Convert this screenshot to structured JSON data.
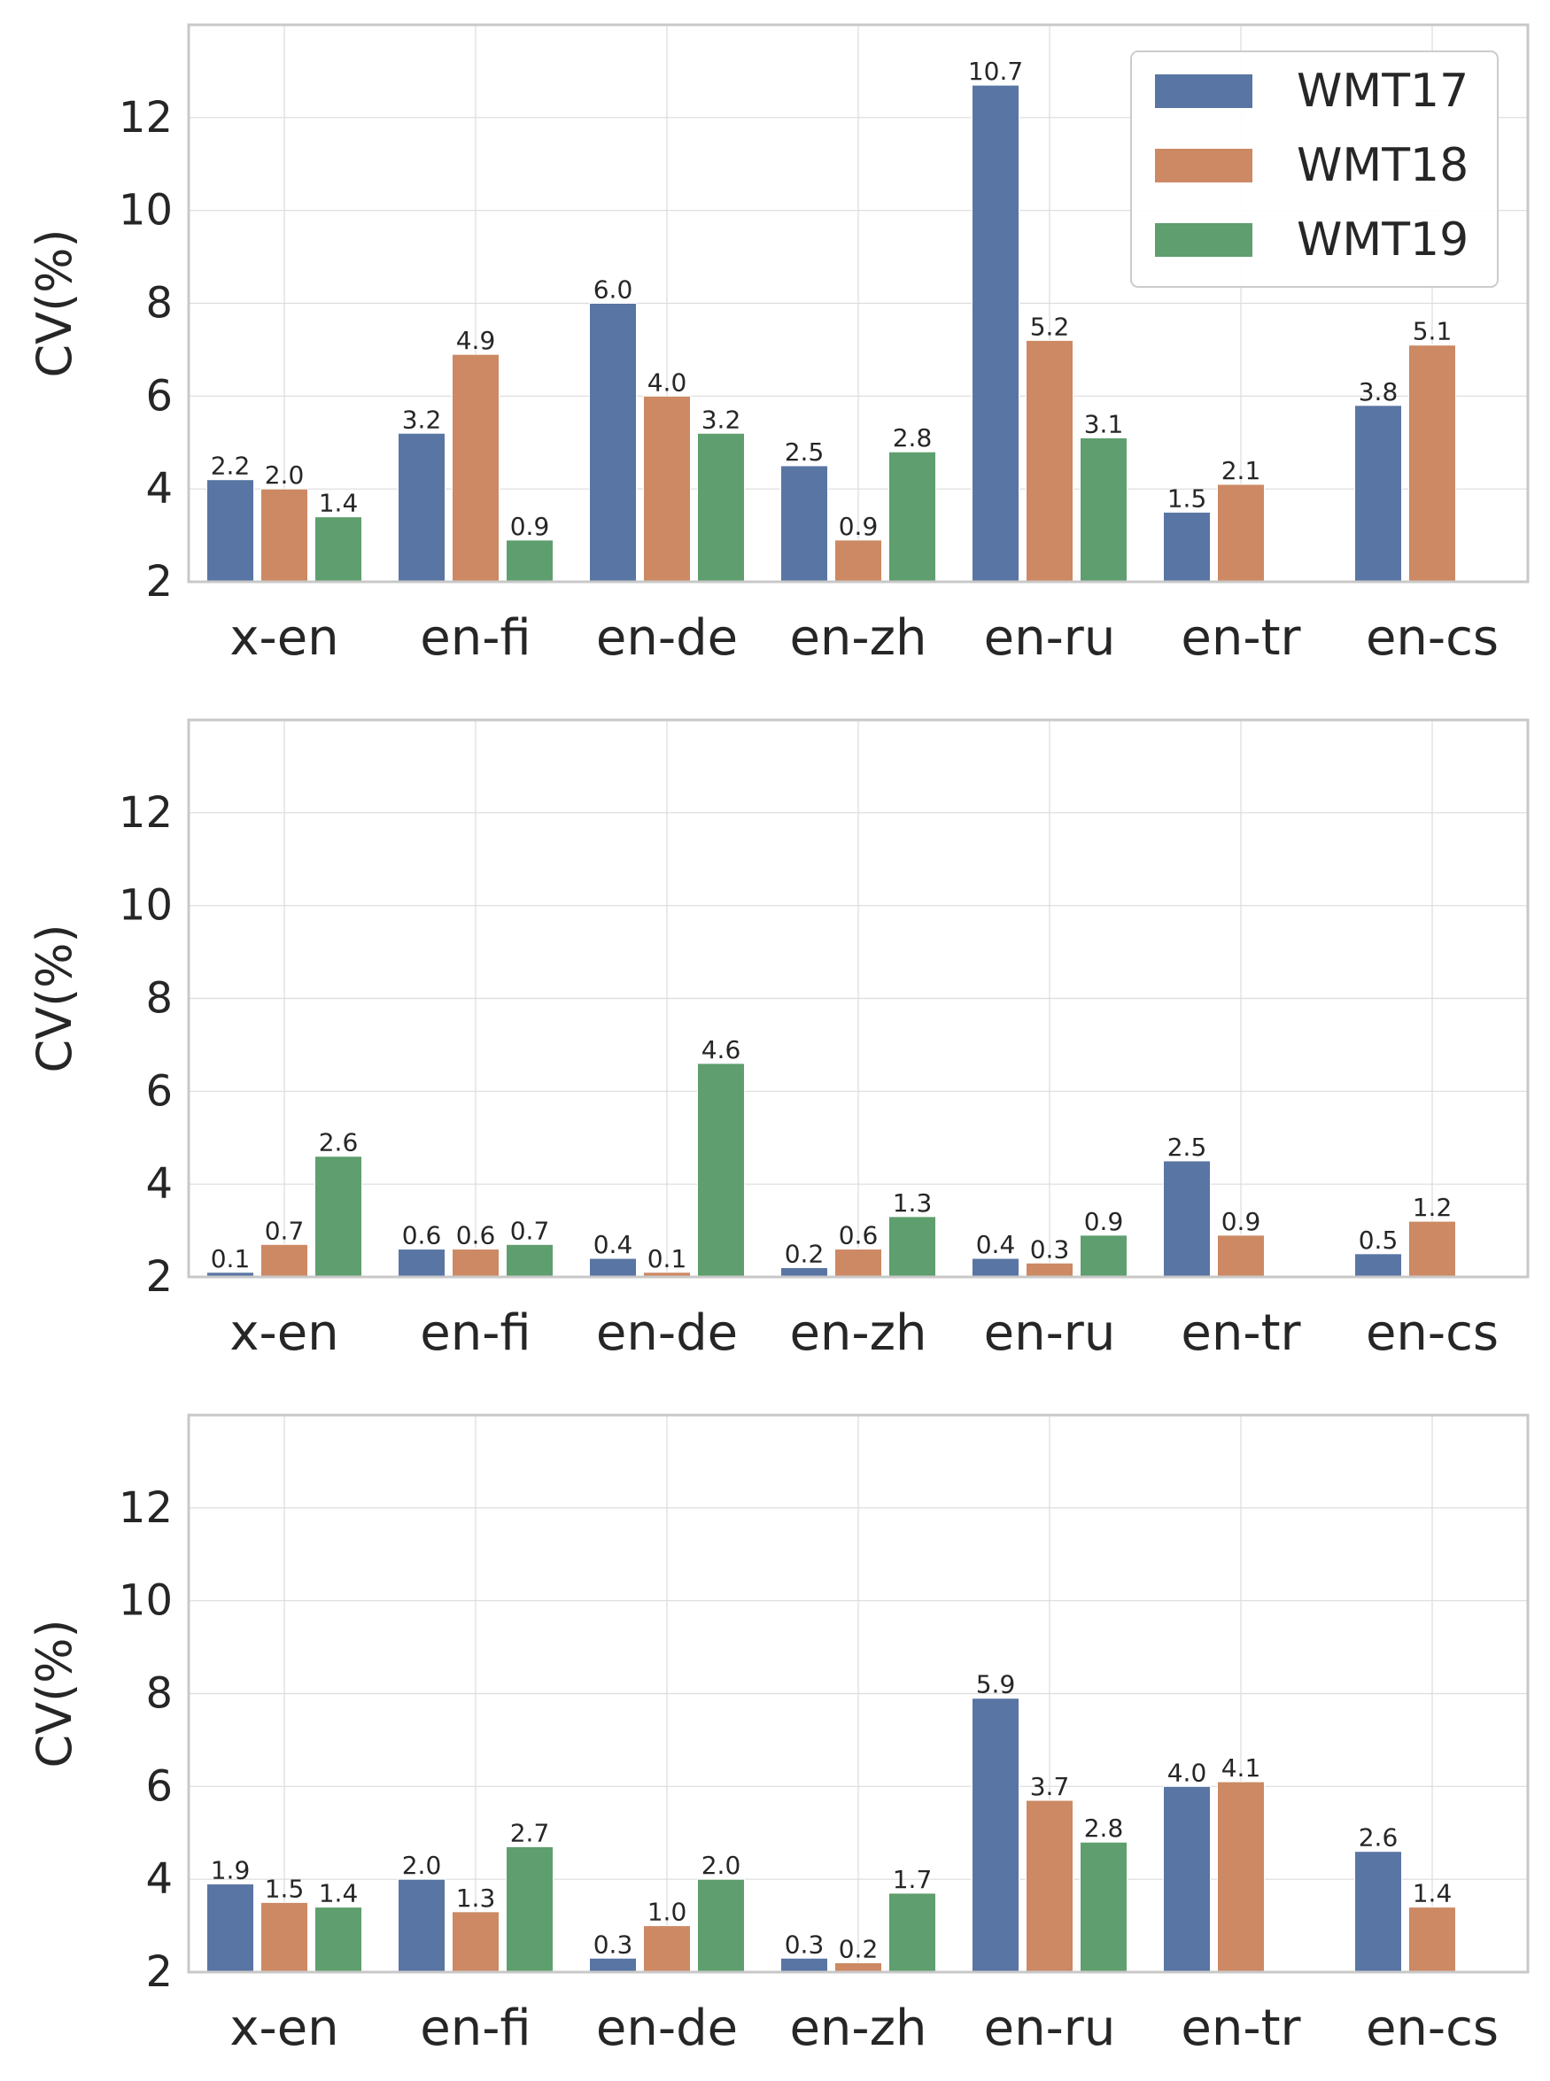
{
  "legend": {
    "position": "top-right",
    "entries": [
      {
        "name": "WMT17",
        "color": "#5975a4"
      },
      {
        "name": "WMT18",
        "color": "#cc8963"
      },
      {
        "name": "WMT19",
        "color": "#5f9e6e"
      }
    ]
  },
  "chart_data": [
    {
      "type": "bar",
      "title": "",
      "xlabel": "",
      "ylabel": "CV(%)",
      "ylim": [
        2,
        14
      ],
      "yticks": [
        2,
        4,
        6,
        8,
        10,
        12
      ],
      "grid": true,
      "categories": [
        "x-en",
        "en-fi",
        "en-de",
        "en-zh",
        "en-ru",
        "en-tr",
        "en-cs"
      ],
      "series": [
        {
          "name": "WMT17",
          "values": [
            4.2,
            5.2,
            8.0,
            4.5,
            12.7,
            3.5,
            5.8
          ],
          "labels": [
            "2.2",
            "3.2",
            "6.0",
            "2.5",
            "10.7",
            "1.5",
            "3.8"
          ]
        },
        {
          "name": "WMT18",
          "values": [
            4.0,
            6.9,
            6.0,
            2.9,
            7.2,
            4.1,
            7.1
          ],
          "labels": [
            "2.0",
            "4.9",
            "4.0",
            "0.9",
            "5.2",
            "2.1",
            "5.1"
          ]
        },
        {
          "name": "WMT19",
          "values": [
            3.4,
            2.9,
            5.2,
            4.8,
            5.1,
            null,
            null
          ],
          "labels": [
            "1.4",
            "0.9",
            "3.2",
            "2.8",
            "3.1",
            null,
            null
          ]
        }
      ]
    },
    {
      "type": "bar",
      "title": "",
      "xlabel": "",
      "ylabel": "CV(%)",
      "ylim": [
        2,
        14
      ],
      "yticks": [
        2,
        4,
        6,
        8,
        10,
        12
      ],
      "grid": true,
      "categories": [
        "x-en",
        "en-fi",
        "en-de",
        "en-zh",
        "en-ru",
        "en-tr",
        "en-cs"
      ],
      "series": [
        {
          "name": "WMT17",
          "values": [
            2.1,
            2.6,
            2.4,
            2.2,
            2.4,
            4.5,
            2.5
          ],
          "labels": [
            "0.1",
            "0.6",
            "0.4",
            "0.2",
            "0.4",
            "2.5",
            "0.5"
          ]
        },
        {
          "name": "WMT18",
          "values": [
            2.7,
            2.6,
            2.1,
            2.6,
            2.3,
            2.9,
            3.2
          ],
          "labels": [
            "0.7",
            "0.6",
            "0.1",
            "0.6",
            "0.3",
            "0.9",
            "1.2"
          ]
        },
        {
          "name": "WMT19",
          "values": [
            4.6,
            2.7,
            6.6,
            3.3,
            2.9,
            null,
            null
          ],
          "labels": [
            "2.6",
            "0.7",
            "4.6",
            "1.3",
            "0.9",
            null,
            null
          ]
        }
      ]
    },
    {
      "type": "bar",
      "title": "",
      "xlabel": "",
      "ylabel": "CV(%)",
      "ylim": [
        2,
        14
      ],
      "yticks": [
        2,
        4,
        6,
        8,
        10,
        12
      ],
      "grid": true,
      "categories": [
        "x-en",
        "en-fi",
        "en-de",
        "en-zh",
        "en-ru",
        "en-tr",
        "en-cs"
      ],
      "series": [
        {
          "name": "WMT17",
          "values": [
            3.9,
            4.0,
            2.3,
            2.3,
            7.9,
            6.0,
            4.6
          ],
          "labels": [
            "1.9",
            "2.0",
            "0.3",
            "0.3",
            "5.9",
            "4.0",
            "2.6"
          ]
        },
        {
          "name": "WMT18",
          "values": [
            3.5,
            3.3,
            3.0,
            2.2,
            5.7,
            6.1,
            3.4
          ],
          "labels": [
            "1.5",
            "1.3",
            "1.0",
            "0.2",
            "3.7",
            "4.1",
            "1.4"
          ]
        },
        {
          "name": "WMT19",
          "values": [
            3.4,
            4.7,
            4.0,
            3.7,
            4.8,
            null,
            null
          ],
          "labels": [
            "1.4",
            "2.7",
            "2.0",
            "1.7",
            "2.8",
            null,
            null
          ]
        }
      ]
    }
  ]
}
